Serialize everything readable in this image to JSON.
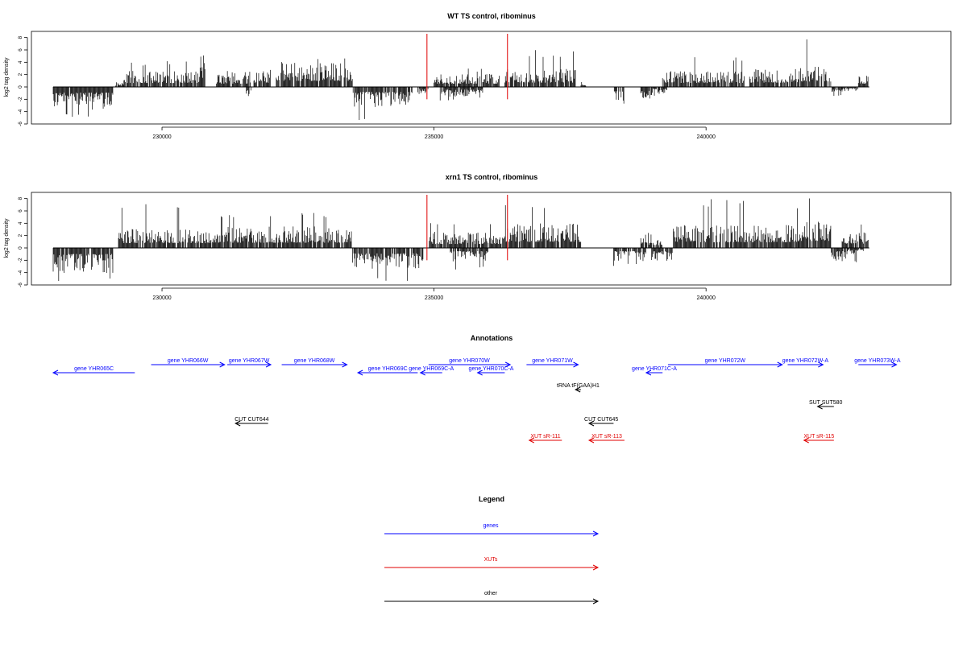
{
  "chart_data": [
    {
      "type": "bar",
      "title": "WT TS control, ribominus",
      "xlabel": "",
      "ylabel": "log2 tag density",
      "xlim": [
        227600,
        244500
      ],
      "ylim": [
        -6,
        9
      ],
      "y_ticks": [
        8,
        6,
        4,
        2,
        0,
        -2,
        -4,
        -6
      ],
      "x_ticks": [
        230000,
        235000,
        240000
      ],
      "x_tick_labels": [
        "230000",
        "235000",
        "240000"
      ],
      "baseline": {
        "from": 228000,
        "to": 243000
      },
      "markers": [
        234870,
        236350
      ],
      "marker_color": "#e00000",
      "bar_color": "#000000",
      "segments": [
        {
          "start": 228000,
          "end": 229100,
          "sign": -1,
          "mean": 2.6,
          "max": 5.2
        },
        {
          "start": 229150,
          "end": 229300,
          "sign": 1,
          "mean": 0.6,
          "max": 1.0
        },
        {
          "start": 229300,
          "end": 230700,
          "sign": 1,
          "mean": 1.8,
          "max": 4.2
        },
        {
          "start": 230700,
          "end": 230800,
          "sign": 1,
          "mean": 4.0,
          "max": 6.5
        },
        {
          "start": 231000,
          "end": 231600,
          "sign": 1,
          "mean": 1.5,
          "max": 2.6
        },
        {
          "start": 231600,
          "end": 232000,
          "sign": 1,
          "mean": 1.8,
          "max": 3.0
        },
        {
          "start": 231550,
          "end": 231650,
          "sign": -1,
          "mean": 1.5,
          "max": 2.2
        },
        {
          "start": 232100,
          "end": 233500,
          "sign": 1,
          "mean": 2.8,
          "max": 5.0
        },
        {
          "start": 233500,
          "end": 234600,
          "sign": -1,
          "mean": 2.3,
          "max": 5.5
        },
        {
          "start": 234700,
          "end": 234900,
          "sign": -1,
          "mean": 0.8,
          "max": 1.2
        },
        {
          "start": 235000,
          "end": 236200,
          "sign": 1,
          "mean": 1.5,
          "max": 3.0
        },
        {
          "start": 235100,
          "end": 235900,
          "sign": -1,
          "mean": 1.2,
          "max": 2.5
        },
        {
          "start": 236300,
          "end": 237600,
          "sign": 1,
          "mean": 2.0,
          "max": 6.0
        },
        {
          "start": 237700,
          "end": 237800,
          "sign": 1,
          "mean": 0.6,
          "max": 1.0
        },
        {
          "start": 238300,
          "end": 238500,
          "sign": -1,
          "mean": 2.0,
          "max": 3.5
        },
        {
          "start": 238800,
          "end": 239000,
          "sign": -1,
          "mean": 1.8,
          "max": 3.0
        },
        {
          "start": 239000,
          "end": 239300,
          "sign": -1,
          "mean": 0.8,
          "max": 1.5
        },
        {
          "start": 239200,
          "end": 240700,
          "sign": 1,
          "mean": 1.8,
          "max": 5.0
        },
        {
          "start": 240800,
          "end": 241700,
          "sign": 1,
          "mean": 2.0,
          "max": 4.5
        },
        {
          "start": 241700,
          "end": 242300,
          "sign": 1,
          "mean": 2.5,
          "max": 8.0
        },
        {
          "start": 242300,
          "end": 242500,
          "sign": -1,
          "mean": 1.2,
          "max": 2.5
        },
        {
          "start": 242500,
          "end": 242800,
          "sign": -1,
          "mean": 0.5,
          "max": 1.0
        },
        {
          "start": 242800,
          "end": 243000,
          "sign": 1,
          "mean": 1.5,
          "max": 3.0
        }
      ]
    },
    {
      "type": "bar",
      "title": "xrn1 TS control, ribominus",
      "xlabel": "",
      "ylabel": "log2 tag density",
      "xlim": [
        227600,
        244500
      ],
      "ylim": [
        -6,
        9
      ],
      "y_ticks": [
        8,
        6,
        4,
        2,
        0,
        -2,
        -4,
        -6
      ],
      "x_ticks": [
        230000,
        235000,
        240000
      ],
      "x_tick_labels": [
        "230000",
        "235000",
        "240000"
      ],
      "baseline": {
        "from": 228000,
        "to": 243000
      },
      "markers": [
        234870,
        236350
      ],
      "marker_color": "#e00000",
      "bar_color": "#000000",
      "segments": [
        {
          "start": 228000,
          "end": 229100,
          "sign": -1,
          "mean": 2.8,
          "max": 5.8
        },
        {
          "start": 229200,
          "end": 230900,
          "sign": 1,
          "mean": 2.2,
          "max": 7.2
        },
        {
          "start": 230900,
          "end": 233500,
          "sign": 1,
          "mean": 2.4,
          "max": 6.0
        },
        {
          "start": 233500,
          "end": 234800,
          "sign": -1,
          "mean": 2.5,
          "max": 5.5
        },
        {
          "start": 234900,
          "end": 236300,
          "sign": 1,
          "mean": 1.8,
          "max": 4.5
        },
        {
          "start": 235300,
          "end": 236000,
          "sign": -1,
          "mean": 1.5,
          "max": 3.5
        },
        {
          "start": 236300,
          "end": 237700,
          "sign": 1,
          "mean": 2.8,
          "max": 7.0
        },
        {
          "start": 238300,
          "end": 238900,
          "sign": -1,
          "mean": 1.5,
          "max": 3.0
        },
        {
          "start": 238800,
          "end": 239200,
          "sign": 1,
          "mean": 1.2,
          "max": 2.5
        },
        {
          "start": 239000,
          "end": 239400,
          "sign": -1,
          "mean": 1.5,
          "max": 3.0
        },
        {
          "start": 239400,
          "end": 241700,
          "sign": 1,
          "mean": 2.6,
          "max": 8.0
        },
        {
          "start": 241700,
          "end": 242300,
          "sign": 1,
          "mean": 3.2,
          "max": 8.2
        },
        {
          "start": 242300,
          "end": 242600,
          "sign": -1,
          "mean": 1.5,
          "max": 2.5
        },
        {
          "start": 242600,
          "end": 242900,
          "sign": -1,
          "mean": 0.8,
          "max": 2.5
        },
        {
          "start": 242500,
          "end": 243000,
          "sign": 1,
          "mean": 2.0,
          "max": 4.5
        }
      ]
    }
  ],
  "annotations": {
    "title": "Annotations",
    "features": [
      {
        "label": "gene YHR065C",
        "color": "#0000ff",
        "start": 228000,
        "end": 229500,
        "strand": "-",
        "row": 1
      },
      {
        "label": "gene YHR066W",
        "color": "#0000ff",
        "start": 229800,
        "end": 231150,
        "strand": "+",
        "row": 0
      },
      {
        "label": "gene YHR067W",
        "color": "#0000ff",
        "start": 231200,
        "end": 232000,
        "strand": "+",
        "row": 0
      },
      {
        "label": "gene YHR068W",
        "color": "#0000ff",
        "start": 232200,
        "end": 233400,
        "strand": "+",
        "row": 0
      },
      {
        "label": "gene YHR069C",
        "color": "#0000ff",
        "start": 233600,
        "end": 234700,
        "strand": "-",
        "row": 1
      },
      {
        "label": "gene YHR069C-A",
        "color": "#0000ff",
        "start": 234750,
        "end": 235150,
        "strand": "-",
        "row": 1
      },
      {
        "label": "gene YHR070W",
        "color": "#0000ff",
        "start": 234900,
        "end": 236400,
        "strand": "+",
        "row": 0
      },
      {
        "label": "gene YHR070C-A",
        "color": "#0000ff",
        "start": 235800,
        "end": 236300,
        "strand": "-",
        "row": 1
      },
      {
        "label": "gene YHR071W",
        "color": "#0000ff",
        "start": 236700,
        "end": 237650,
        "strand": "+",
        "row": 0
      },
      {
        "label": "gene YHR071C-A",
        "color": "#0000ff",
        "start": 238900,
        "end": 239200,
        "strand": "-",
        "row": 1
      },
      {
        "label": "gene YHR072W",
        "color": "#0000ff",
        "start": 239300,
        "end": 241400,
        "strand": "+",
        "row": 0
      },
      {
        "label": "gene YHR072W-A",
        "color": "#0000ff",
        "start": 241500,
        "end": 242150,
        "strand": "+",
        "row": 0
      },
      {
        "label": "gene YHR073W-A",
        "color": "#0000ff",
        "start": 242800,
        "end": 243500,
        "strand": "+",
        "row": 0
      },
      {
        "label": "tRNA tF(GAA)H1",
        "color": "#000000",
        "start": 237600,
        "end": 237700,
        "strand": "-",
        "row": 2
      },
      {
        "label": "SUT SUT580",
        "color": "#000000",
        "start": 242050,
        "end": 242350,
        "strand": "-",
        "row": 3
      },
      {
        "label": "CUT CUT644",
        "color": "#000000",
        "start": 231350,
        "end": 231950,
        "strand": "-",
        "row": 4
      },
      {
        "label": "CUT CUT645",
        "color": "#000000",
        "start": 237850,
        "end": 238300,
        "strand": "-",
        "row": 4
      },
      {
        "label": "XUT sR-111",
        "color": "#e00000",
        "start": 236750,
        "end": 237350,
        "strand": "-",
        "row": 5
      },
      {
        "label": "XUT sR-113",
        "color": "#e00000",
        "start": 237850,
        "end": 238500,
        "strand": "-",
        "row": 5
      },
      {
        "label": "XUT sR-115",
        "color": "#e00000",
        "start": 241800,
        "end": 242350,
        "strand": "-",
        "row": 5
      }
    ]
  },
  "legend": {
    "title": "Legend",
    "items": [
      {
        "label": "genes",
        "color": "#0000ff"
      },
      {
        "label": "XUTs",
        "color": "#e00000"
      },
      {
        "label": "other",
        "color": "#000000"
      }
    ]
  }
}
